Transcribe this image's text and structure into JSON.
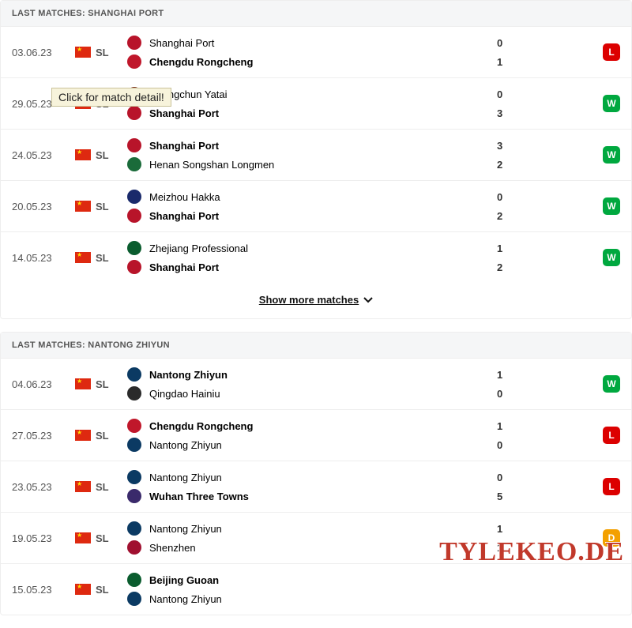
{
  "colors": {
    "badge_W": "#00a83f",
    "badge_L": "#dc0000",
    "badge_D": "#f3a000",
    "flag_bg": "#de2910",
    "flag_star": "#ffde00"
  },
  "tooltip_text": "Click for match detail!",
  "show_more_label": "Show more matches",
  "watermark": "TYLEKEO.DE",
  "sections": [
    {
      "title": "LAST MATCHES: SHANGHAI PORT",
      "matches": [
        {
          "date": "03.06.23",
          "comp": "SL",
          "home": "Shanghai Port",
          "home_logo": "#b8142a",
          "away": "Chengdu Rongcheng",
          "away_logo": "#c0172b",
          "home_score": "0",
          "away_score": "1",
          "winner": "away",
          "result": "L"
        },
        {
          "date": "29.05.23",
          "comp": "SL",
          "tooltip": true,
          "home": "Changchun Yatai",
          "home_logo": "#7a2e1a",
          "away": "Shanghai Port",
          "away_logo": "#b8142a",
          "home_score": "0",
          "away_score": "3",
          "winner": "away",
          "result": "W"
        },
        {
          "date": "24.05.23",
          "comp": "SL",
          "home": "Shanghai Port",
          "home_logo": "#b8142a",
          "away": "Henan Songshan Longmen",
          "away_logo": "#1a6b3a",
          "home_score": "3",
          "away_score": "2",
          "winner": "home",
          "result": "W"
        },
        {
          "date": "20.05.23",
          "comp": "SL",
          "home": "Meizhou Hakka",
          "home_logo": "#1a2a6b",
          "away": "Shanghai Port",
          "away_logo": "#b8142a",
          "home_score": "0",
          "away_score": "2",
          "winner": "away",
          "result": "W"
        },
        {
          "date": "14.05.23",
          "comp": "SL",
          "home": "Zhejiang Professional",
          "home_logo": "#0a5c2e",
          "away": "Shanghai Port",
          "away_logo": "#b8142a",
          "home_score": "1",
          "away_score": "2",
          "winner": "away",
          "result": "W"
        }
      ]
    },
    {
      "title": "LAST MATCHES: NANTONG ZHIYUN",
      "matches": [
        {
          "date": "04.06.23",
          "comp": "SL",
          "home": "Nantong Zhiyun",
          "home_logo": "#0b3a63",
          "away": "Qingdao Hainiu",
          "away_logo": "#2a2a2a",
          "home_score": "1",
          "away_score": "0",
          "winner": "home",
          "result": "W"
        },
        {
          "date": "27.05.23",
          "comp": "SL",
          "home": "Chengdu Rongcheng",
          "home_logo": "#c0172b",
          "away": "Nantong Zhiyun",
          "away_logo": "#0b3a63",
          "home_score": "1",
          "away_score": "0",
          "winner": "home",
          "result": "L"
        },
        {
          "date": "23.05.23",
          "comp": "SL",
          "home": "Nantong Zhiyun",
          "home_logo": "#0b3a63",
          "away": "Wuhan Three Towns",
          "away_logo": "#3a2a6b",
          "home_score": "0",
          "away_score": "5",
          "winner": "away",
          "result": "L"
        },
        {
          "date": "19.05.23",
          "comp": "SL",
          "home": "Nantong Zhiyun",
          "home_logo": "#0b3a63",
          "away": "Shenzhen",
          "away_logo": "#a01030",
          "home_score": "1",
          "away_score": "1",
          "winner": "draw",
          "result": "D"
        },
        {
          "date": "15.05.23",
          "comp": "SL",
          "home": "Beijing Guoan",
          "home_logo": "#0a5c2e",
          "away": "Nantong Zhiyun",
          "away_logo": "#0b3a63",
          "home_score": "",
          "away_score": "",
          "winner": "home",
          "result": ""
        }
      ]
    }
  ]
}
